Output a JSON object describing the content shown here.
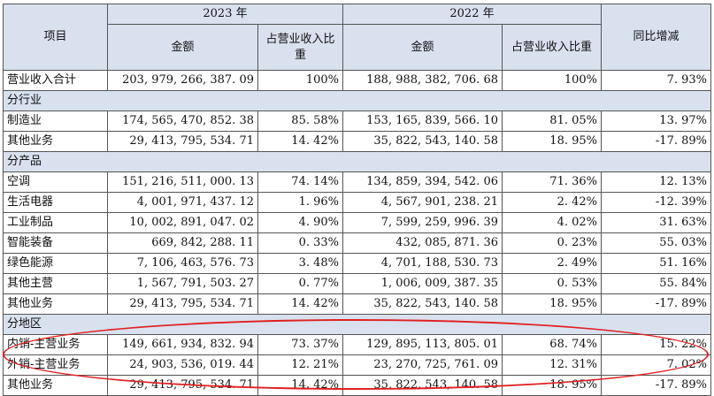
{
  "headers": {
    "item": "项目",
    "year_2023": "2023 年",
    "year_2022": "2022 年",
    "amount": "金额",
    "ratio": "占营业收入比重",
    "yoy": "同比增减"
  },
  "total": {
    "label": "营业收入合计",
    "a2023": "203, 979, 266, 387. 09",
    "r2023": "100%",
    "a2022": "188, 988, 382, 706. 68",
    "r2022": "100%",
    "yoy": "7. 93%"
  },
  "sections": [
    {
      "title": "分行业",
      "rows": [
        {
          "label": "制造业",
          "a2023": "174, 565, 470, 852. 38",
          "r2023": "85. 58%",
          "a2022": "153, 165, 839, 566. 10",
          "r2022": "81. 05%",
          "yoy": "13. 97%"
        },
        {
          "label": "其他业务",
          "a2023": "29, 413, 795, 534. 71",
          "r2023": "14. 42%",
          "a2022": "35, 822, 543, 140. 58",
          "r2022": "18. 95%",
          "yoy": "-17. 89%"
        }
      ]
    },
    {
      "title": "分产品",
      "rows": [
        {
          "label": "空调",
          "a2023": "151, 216, 511, 000. 13",
          "r2023": "74. 14%",
          "a2022": "134, 859, 394, 542. 06",
          "r2022": "71. 36%",
          "yoy": "12. 13%"
        },
        {
          "label": "生活电器",
          "a2023": "4, 001, 971, 437. 12",
          "r2023": "1. 96%",
          "a2022": "4, 567, 901, 238. 21",
          "r2022": "2. 42%",
          "yoy": "-12. 39%"
        },
        {
          "label": "工业制品",
          "a2023": "10, 002, 891, 047. 02",
          "r2023": "4. 90%",
          "a2022": "7, 599, 259, 996. 39",
          "r2022": "4. 02%",
          "yoy": "31. 63%"
        },
        {
          "label": "智能装备",
          "a2023": "669, 842, 288. 11",
          "r2023": "0. 33%",
          "a2022": "432, 085, 871. 36",
          "r2022": "0. 23%",
          "yoy": "55. 03%"
        },
        {
          "label": "绿色能源",
          "a2023": "7, 106, 463, 576. 73",
          "r2023": "3. 48%",
          "a2022": "4, 701, 188, 530. 73",
          "r2022": "2. 49%",
          "yoy": "51. 16%"
        },
        {
          "label": "其他主营",
          "a2023": "1, 567, 791, 503. 27",
          "r2023": "0. 77%",
          "a2022": "1, 006, 009, 387. 35",
          "r2022": "0. 53%",
          "yoy": "55. 84%"
        },
        {
          "label": "其他业务",
          "a2023": "29, 413, 795, 534. 71",
          "r2023": "14. 42%",
          "a2022": "35, 822, 543, 140. 58",
          "r2022": "18. 95%",
          "yoy": "-17. 89%"
        }
      ]
    },
    {
      "title": "分地区",
      "rows": [
        {
          "label": "内销-主营业务",
          "a2023": "149, 661, 934, 832. 94",
          "r2023": "73. 37%",
          "a2022": "129, 895, 113, 805. 01",
          "r2022": "68. 74%",
          "yoy": "15. 22%"
        },
        {
          "label": "外销-主营业务",
          "a2023": "24, 903, 536, 019. 44",
          "r2023": "12. 21%",
          "a2022": "23, 270, 725, 761. 09",
          "r2022": "12. 31%",
          "yoy": "7. 02%"
        },
        {
          "label": "其他业务",
          "a2023": "29, 413, 795, 534. 71",
          "r2023": "14. 42%",
          "a2022": "35, 822, 543, 140. 58",
          "r2022": "18. 95%",
          "yoy": "-17. 89%"
        }
      ]
    }
  ],
  "annotation_color": "#e02020"
}
